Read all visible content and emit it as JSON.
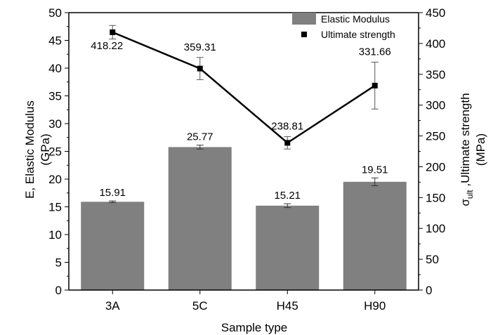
{
  "chart_data": {
    "type": "bar",
    "categories": [
      "3A",
      "5C",
      "H45",
      "H90"
    ],
    "xlabel": "Sample type",
    "ylabel_left_line1": "E, Elastic Modulus",
    "ylabel_left_line2": "(GPa)",
    "ylabel_right_sigma": "σ",
    "ylabel_right_sub": "ult",
    "ylabel_right_rest": " ,Ultimate strength",
    "ylabel_right_line2": "(MPa)",
    "ylim_left": [
      0,
      50
    ],
    "ylim_right": [
      0,
      450
    ],
    "left_ticks": [
      0,
      5,
      10,
      15,
      20,
      25,
      30,
      35,
      40,
      45,
      50
    ],
    "right_ticks": [
      0,
      50,
      100,
      150,
      200,
      250,
      300,
      350,
      400,
      450
    ],
    "series": [
      {
        "name": "Elastic Modulus",
        "kind": "bar",
        "axis": "left",
        "color": "#808080",
        "values": [
          15.91,
          25.77,
          15.21,
          19.51
        ],
        "labels": [
          "15.91",
          "25.77",
          "15.21",
          "19.51"
        ],
        "error": [
          0.15,
          0.35,
          0.35,
          0.7
        ]
      },
      {
        "name": "Ultimate strength",
        "kind": "line",
        "axis": "right",
        "color": "#000000",
        "values": [
          418.22,
          359.31,
          238.81,
          331.66
        ],
        "labels": [
          "418.22",
          "359.31",
          "238.81",
          "331.66"
        ],
        "error": [
          11,
          18,
          10,
          38
        ]
      }
    ],
    "legend_position": "top-right",
    "grid": false
  }
}
